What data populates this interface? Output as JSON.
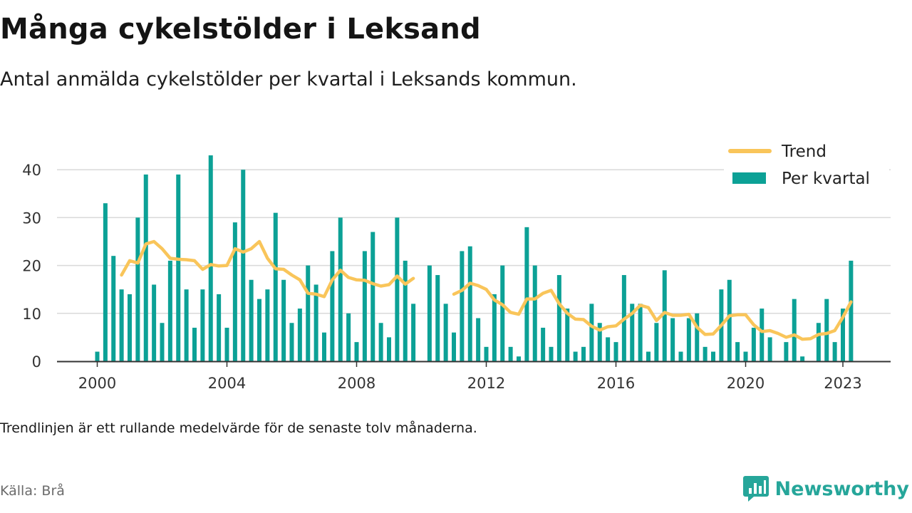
{
  "header": {
    "title": "Många cykelstölder i Leksand",
    "subtitle": "Antal anmälda cykelstölder per kvartal i Leksands kommun."
  },
  "footer": {
    "note": "Trendlinjen är ett rullande medelvärde för de senaste tolv månaderna.",
    "source": "Källa: Brå",
    "brand": "Newsworthy",
    "brand_icon": "newsworthy-logo-icon"
  },
  "colors": {
    "bar": "#0ca196",
    "trend": "#f9c55a",
    "grid": "#d9d9d9",
    "axis": "#333333",
    "brand": "#26a69a"
  },
  "chart_data": {
    "type": "bar",
    "x_axis": {
      "ticks": [
        2000,
        2004,
        2008,
        2012,
        2016,
        2020,
        2023
      ],
      "tick_labels": [
        "2000",
        "2004",
        "2008",
        "2012",
        "2016",
        "2020",
        "2023"
      ]
    },
    "y_axis": {
      "ylim": [
        0,
        43
      ],
      "ticks": [
        0,
        10,
        20,
        30,
        40
      ],
      "tick_labels": [
        "0",
        "10",
        "20",
        "30",
        "40"
      ]
    },
    "grid": true,
    "legend": {
      "placement": "top-right",
      "trend_label": "Trend",
      "bars_label": "Per kvartal"
    },
    "series": [
      {
        "name": "Per kvartal",
        "type": "bar",
        "x": [
          "2000Q1",
          "2000Q2",
          "2000Q3",
          "2000Q4",
          "2001Q1",
          "2001Q2",
          "2001Q3",
          "2001Q4",
          "2002Q1",
          "2002Q2",
          "2002Q3",
          "2002Q4",
          "2003Q1",
          "2003Q2",
          "2003Q3",
          "2003Q4",
          "2004Q1",
          "2004Q2",
          "2004Q3",
          "2004Q4",
          "2005Q1",
          "2005Q2",
          "2005Q3",
          "2005Q4",
          "2006Q1",
          "2006Q2",
          "2006Q3",
          "2006Q4",
          "2007Q1",
          "2007Q2",
          "2007Q3",
          "2007Q4",
          "2008Q1",
          "2008Q2",
          "2008Q3",
          "2008Q4",
          "2009Q1",
          "2009Q2",
          "2009Q3",
          "2009Q4",
          "2010Q1",
          "2010Q2",
          "2010Q3",
          "2010Q4",
          "2011Q1",
          "2011Q2",
          "2011Q3",
          "2011Q4",
          "2012Q1",
          "2012Q2",
          "2012Q3",
          "2012Q4",
          "2013Q1",
          "2013Q2",
          "2013Q3",
          "2013Q4",
          "2014Q1",
          "2014Q2",
          "2014Q3",
          "2014Q4",
          "2015Q1",
          "2015Q2",
          "2015Q3",
          "2015Q4",
          "2016Q1",
          "2016Q2",
          "2016Q3",
          "2016Q4",
          "2017Q1",
          "2017Q2",
          "2017Q3",
          "2017Q4",
          "2018Q1",
          "2018Q2",
          "2018Q3",
          "2018Q4",
          "2019Q1",
          "2019Q2",
          "2019Q3",
          "2019Q4",
          "2020Q1",
          "2020Q2",
          "2020Q3",
          "2020Q4",
          "2021Q1",
          "2021Q2",
          "2021Q3",
          "2021Q4",
          "2022Q1",
          "2022Q2",
          "2022Q3",
          "2022Q4",
          "2023Q1",
          "2023Q2"
        ],
        "values": [
          2,
          33,
          22,
          15,
          14,
          30,
          39,
          16,
          8,
          21,
          39,
          15,
          7,
          15,
          43,
          14,
          7,
          29,
          40,
          17,
          13,
          15,
          31,
          17,
          8,
          11,
          20,
          16,
          6,
          23,
          30,
          10,
          4,
          23,
          27,
          8,
          5,
          30,
          21,
          12,
          null,
          20,
          18,
          12,
          6,
          23,
          24,
          9,
          3,
          14,
          20,
          3,
          1,
          28,
          20,
          7,
          3,
          18,
          11,
          2,
          3,
          12,
          8,
          5,
          4,
          18,
          12,
          12,
          2,
          8,
          19,
          9,
          2,
          9,
          10,
          3,
          2,
          15,
          17,
          4,
          2,
          7,
          11,
          5,
          null,
          4,
          13,
          1,
          null,
          8,
          13,
          4,
          11,
          21
        ]
      },
      {
        "name": "Trend",
        "type": "line",
        "x": [
          "2000Q4",
          "2001Q1",
          "2001Q2",
          "2001Q3",
          "2001Q4",
          "2002Q1",
          "2002Q2",
          "2002Q3",
          "2002Q4",
          "2003Q1",
          "2003Q2",
          "2003Q3",
          "2003Q4",
          "2004Q1",
          "2004Q2",
          "2004Q3",
          "2004Q4",
          "2005Q1",
          "2005Q2",
          "2005Q3",
          "2005Q4",
          "2006Q1",
          "2006Q2",
          "2006Q3",
          "2006Q4",
          "2007Q1",
          "2007Q2",
          "2007Q3",
          "2007Q4",
          "2008Q1",
          "2008Q2",
          "2008Q3",
          "2008Q4",
          "2009Q1",
          "2009Q2",
          "2009Q3",
          "2009Q4",
          "2010Q1",
          "2010Q2",
          "2010Q3",
          "2010Q4",
          "2011Q1",
          "2011Q2",
          "2011Q3",
          "2011Q4",
          "2012Q1",
          "2012Q2",
          "2012Q3",
          "2012Q4",
          "2013Q1",
          "2013Q2",
          "2013Q3",
          "2013Q4",
          "2014Q1",
          "2014Q2",
          "2014Q3",
          "2014Q4",
          "2015Q1",
          "2015Q2",
          "2015Q3",
          "2015Q4",
          "2016Q1",
          "2016Q2",
          "2016Q3",
          "2016Q4",
          "2017Q1",
          "2017Q2",
          "2017Q3",
          "2017Q4",
          "2018Q1",
          "2018Q2",
          "2018Q3",
          "2018Q4",
          "2019Q1",
          "2019Q2",
          "2019Q3",
          "2019Q4",
          "2020Q1",
          "2020Q2",
          "2020Q3",
          "2020Q4",
          "2021Q1",
          "2021Q2",
          "2021Q3",
          "2021Q4",
          "2022Q1",
          "2022Q2",
          "2022Q3",
          "2022Q4",
          "2023Q1",
          "2023Q2"
        ],
        "values": [
          18,
          21,
          20.5,
          24.5,
          25,
          23.5,
          21.5,
          21.3,
          21.2,
          21,
          19.2,
          20.2,
          19.9,
          20,
          23.5,
          22.8,
          23.5,
          25,
          21.5,
          19.3,
          19.2,
          18,
          17,
          14.2,
          14,
          13.5,
          17,
          19,
          17.5,
          17,
          16.9,
          16.2,
          15.7,
          16,
          17.8,
          16.1,
          17.3,
          null,
          null,
          null,
          null,
          14,
          14.8,
          16.3,
          15.8,
          15,
          12.8,
          11.8,
          10.2,
          9.8,
          13,
          13,
          14.2,
          14.8,
          12,
          10,
          8.8,
          8.7,
          7.3,
          6.5,
          7.2,
          7.4,
          8.8,
          10,
          11.7,
          11.2,
          8.5,
          10.2,
          9.6,
          9.6,
          9.8,
          7.1,
          5.6,
          5.7,
          7.5,
          9.5,
          9.7,
          9.7,
          7.6,
          6.2,
          6.4,
          5.8,
          5.0,
          5.5,
          4.6,
          4.7,
          5.6,
          5.8,
          6.4,
          9.2,
          12.4
        ]
      }
    ]
  }
}
